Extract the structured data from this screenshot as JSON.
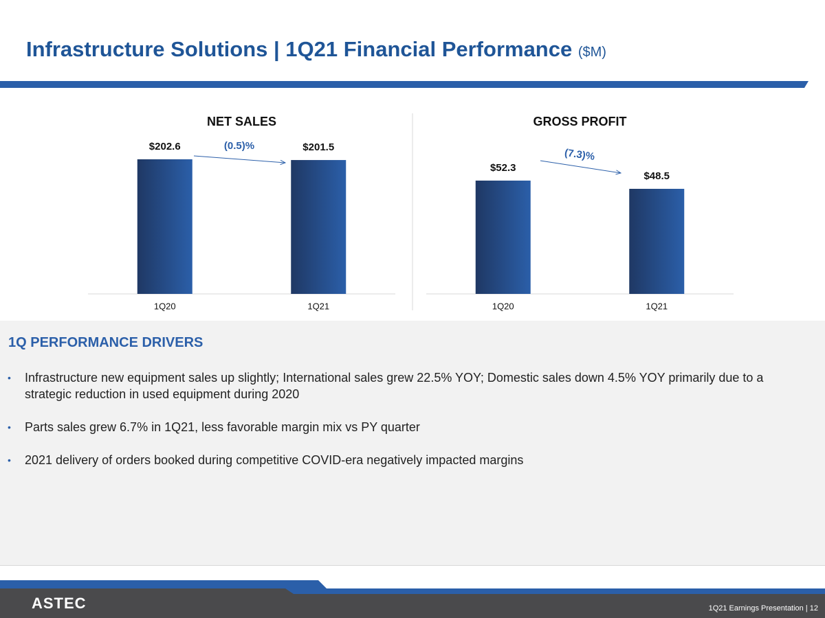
{
  "header": {
    "title": "Infrastructure Solutions | 1Q21 Financial Performance",
    "unit": "($M)"
  },
  "chart_data": [
    {
      "type": "bar",
      "title": "NET SALES",
      "categories": [
        "1Q20",
        "1Q21"
      ],
      "values": [
        202.6,
        201.5
      ],
      "value_labels": [
        "$202.6",
        "$201.5"
      ],
      "annotation": "(0.5)%",
      "color": "#2b5fa9"
    },
    {
      "type": "bar",
      "title": "GROSS PROFIT",
      "categories": [
        "1Q20",
        "1Q21"
      ],
      "values": [
        52.3,
        48.5
      ],
      "value_labels": [
        "$52.3",
        "$48.5"
      ],
      "annotation": "(7.3)%",
      "color": "#2b5fa9"
    }
  ],
  "drivers": {
    "title": "1Q PERFORMANCE DRIVERS",
    "bullets": [
      "Infrastructure new equipment sales up slightly; International sales grew 22.5% YOY; Domestic sales down 4.5% YOY primarily due to a strategic reduction in used equipment during 2020",
      "Parts sales grew 6.7% in 1Q21, less favorable margin mix vs PY quarter",
      "2021 delivery of orders booked during competitive COVID-era negatively impacted margins"
    ]
  },
  "footer": {
    "logo": "ASTEC",
    "text": "1Q21 Earnings Presentation | 12"
  }
}
